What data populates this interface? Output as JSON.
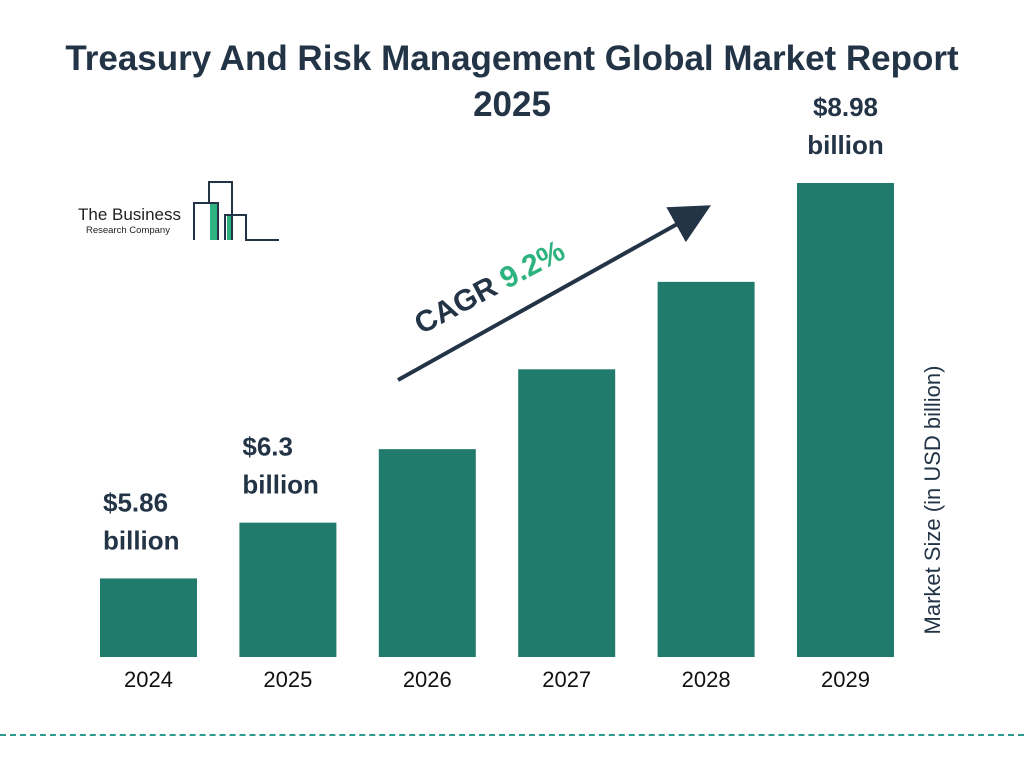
{
  "chart_data": {
    "type": "bar",
    "title": "Treasury And Risk Management Global Market Report 2025",
    "categories": [
      "2024",
      "2025",
      "2026",
      "2027",
      "2028",
      "2029"
    ],
    "values": [
      5.86,
      6.3,
      6.88,
      7.51,
      8.2,
      8.98
    ],
    "data_labels": [
      {
        "value": "$5.86",
        "unit": "billion"
      },
      {
        "value": "$6.3",
        "unit": "billion"
      },
      null,
      null,
      null,
      {
        "value": "$8.98",
        "unit": "billion"
      }
    ],
    "xlabel": "",
    "ylabel": "Market Size (in USD billion)",
    "ylim": [
      5.24,
      9.0
    ],
    "grid": false,
    "bar_color": "#217b6c",
    "annotation": {
      "label": "CAGR",
      "value": "9.2%",
      "value_color": "#2cb37f"
    }
  },
  "logo": {
    "line1": "The Business",
    "line2": "Research Company"
  }
}
